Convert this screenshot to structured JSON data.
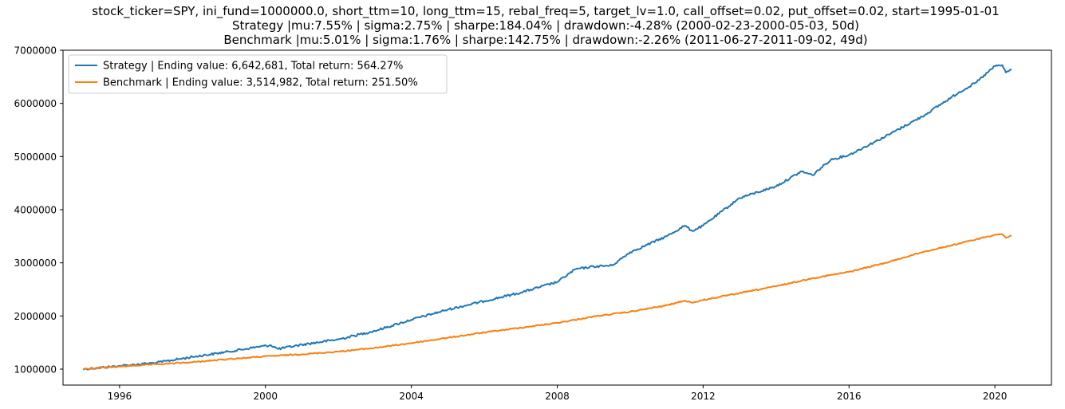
{
  "title_lines": [
    "stock_ticker=SPY, ini_fund=1000000.0, short_ttm=10, long_ttm=15, rebal_freq=5, target_lv=1.0, call_offset=0.02, put_offset=0.02, start=1995-01-01",
    "Strategy |mu:7.55% | sigma:2.75% | sharpe:184.04% | drawdown:-4.28% (2000-02-23-2000-05-03, 50d)",
    "Benchmark |mu:5.01% | sigma:1.76% | sharpe:142.75% | drawdown:-2.26% (2011-06-27-2011-09-02, 49d)"
  ],
  "colors": {
    "strategy": "#1f77b4",
    "benchmark": "#ff7f0e"
  },
  "chart_data": {
    "type": "line",
    "xlim": [
      1994.45,
      2021.55
    ],
    "ylim": [
      700000,
      7000000
    ],
    "x_ticks": [
      1996,
      2000,
      2004,
      2008,
      2012,
      2016,
      2020
    ],
    "x_tick_labels": [
      "1996",
      "2000",
      "2004",
      "2008",
      "2012",
      "2016",
      "2020"
    ],
    "y_ticks": [
      1000000,
      2000000,
      3000000,
      4000000,
      5000000,
      6000000,
      7000000
    ],
    "y_tick_labels": [
      "1000000",
      "2000000",
      "3000000",
      "4000000",
      "5000000",
      "6000000",
      "7000000"
    ],
    "grid": false,
    "legend_position": "top-left",
    "series": [
      {
        "name": "Strategy | Ending value: 6,642,681, Total return: 564.27%",
        "color_key": "strategy",
        "points": [
          [
            1995.0,
            1000000
          ],
          [
            1996.0,
            1060000
          ],
          [
            1997.0,
            1120000
          ],
          [
            1998.0,
            1230000
          ],
          [
            1999.0,
            1330000
          ],
          [
            1999.8,
            1420000
          ],
          [
            2000.15,
            1450000
          ],
          [
            2000.35,
            1380000
          ],
          [
            2001.0,
            1460000
          ],
          [
            2002.0,
            1560000
          ],
          [
            2003.0,
            1720000
          ],
          [
            2004.0,
            1930000
          ],
          [
            2005.0,
            2120000
          ],
          [
            2006.0,
            2280000
          ],
          [
            2007.0,
            2440000
          ],
          [
            2008.0,
            2640000
          ],
          [
            2008.5,
            2880000
          ],
          [
            2009.0,
            2930000
          ],
          [
            2009.5,
            2950000
          ],
          [
            2010.0,
            3200000
          ],
          [
            2011.0,
            3500000
          ],
          [
            2011.5,
            3700000
          ],
          [
            2011.7,
            3600000
          ],
          [
            2012.0,
            3700000
          ],
          [
            2013.0,
            4220000
          ],
          [
            2014.0,
            4440000
          ],
          [
            2014.7,
            4720000
          ],
          [
            2015.0,
            4650000
          ],
          [
            2015.5,
            4940000
          ],
          [
            2016.0,
            5030000
          ],
          [
            2017.0,
            5380000
          ],
          [
            2018.0,
            5750000
          ],
          [
            2019.0,
            6200000
          ],
          [
            2019.5,
            6400000
          ],
          [
            2020.0,
            6700000
          ],
          [
            2020.2,
            6720000
          ],
          [
            2020.3,
            6580000
          ],
          [
            2020.45,
            6642681
          ]
        ]
      },
      {
        "name": "Benchmark | Ending value: 3,514,982, Total return: 251.50%",
        "color_key": "benchmark",
        "points": [
          [
            1995.0,
            1000000
          ],
          [
            1996.0,
            1050000
          ],
          [
            1997.0,
            1090000
          ],
          [
            1998.0,
            1130000
          ],
          [
            1999.0,
            1190000
          ],
          [
            2000.0,
            1240000
          ],
          [
            2001.0,
            1280000
          ],
          [
            2002.0,
            1330000
          ],
          [
            2003.0,
            1400000
          ],
          [
            2004.0,
            1490000
          ],
          [
            2005.0,
            1590000
          ],
          [
            2006.0,
            1690000
          ],
          [
            2007.0,
            1780000
          ],
          [
            2008.0,
            1870000
          ],
          [
            2009.0,
            1990000
          ],
          [
            2010.0,
            2080000
          ],
          [
            2011.0,
            2200000
          ],
          [
            2011.5,
            2290000
          ],
          [
            2011.7,
            2250000
          ],
          [
            2012.0,
            2300000
          ],
          [
            2013.0,
            2430000
          ],
          [
            2014.0,
            2560000
          ],
          [
            2015.0,
            2710000
          ],
          [
            2016.0,
            2830000
          ],
          [
            2017.0,
            3000000
          ],
          [
            2018.0,
            3200000
          ],
          [
            2019.0,
            3360000
          ],
          [
            2020.0,
            3530000
          ],
          [
            2020.2,
            3540000
          ],
          [
            2020.3,
            3470000
          ],
          [
            2020.45,
            3514982
          ]
        ]
      }
    ]
  }
}
